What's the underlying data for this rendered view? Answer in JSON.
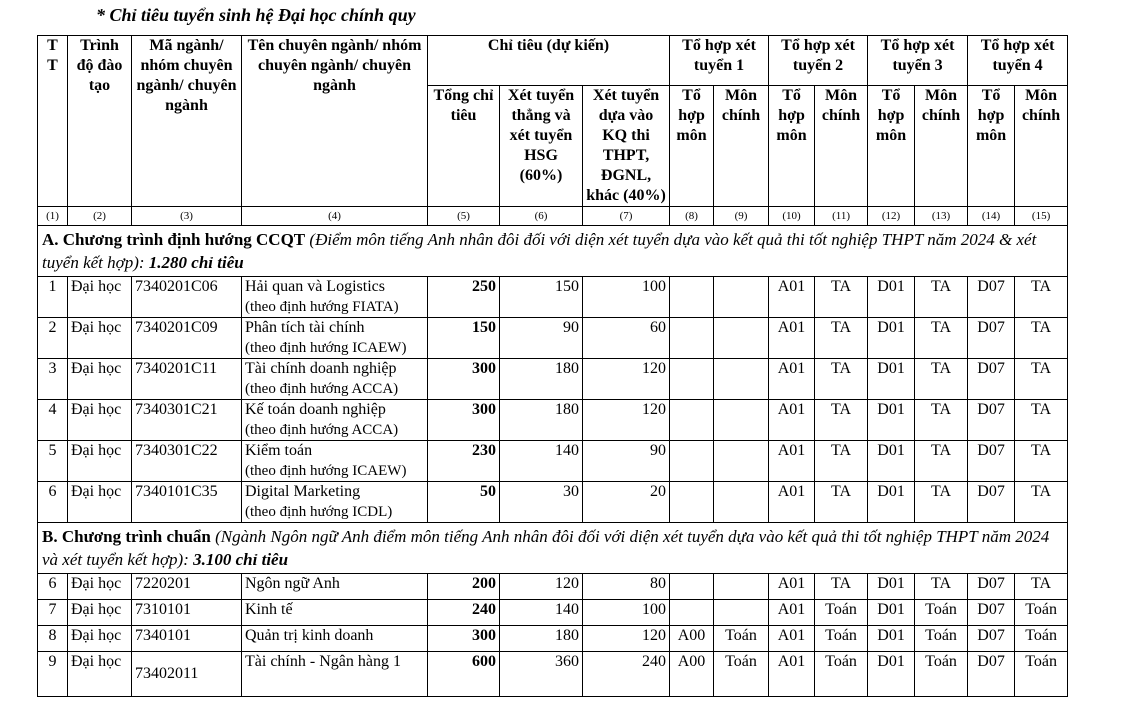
{
  "title": "* Chỉ tiêu tuyển sinh hệ Đại học chính quy",
  "headers": {
    "tt": "T T",
    "trinh_do": "Trình độ đào tạo",
    "ma_nganh": "Mã ngành/ nhóm chuyên ngành/ chuyên ngành",
    "ten": "Tên chuyên ngành/ nhóm chuyên ngành/ chuyên ngành",
    "chi_tieu": "Chỉ tiêu (dự kiến)",
    "tong": "Tổng chỉ tiêu",
    "thang": "Xét tuyển thẳng và xét tuyển HSG (60%)",
    "kq": "Xét tuyển dựa vào KQ thi THPT, ĐGNL, khác (40%)",
    "th1": "Tổ hợp xét tuyển 1",
    "th2": "Tổ hợp xét tuyển 2",
    "th3": "Tổ hợp xét tuyển 3",
    "th4": "Tổ hợp xét tuyển 4",
    "to_hop": "Tổ hợp môn",
    "mon_chinh": "Môn chính"
  },
  "col_numbers": [
    "(1)",
    "(2)",
    "(3)",
    "(4)",
    "(5)",
    "(6)",
    "(7)",
    "(8)",
    "(9)",
    "(10)",
    "(11)",
    "(12)",
    "(13)",
    "(14)",
    "(15)"
  ],
  "section_a": {
    "label": "A. Chương trình định hướng CCQT",
    "note": "(Điểm môn tiếng Anh nhân đôi đối với diện xét tuyển dựa vào kết quả thi tốt nghiệp THPT năm 2024 & xét tuyển kết hợp):",
    "total": "1.280 chỉ tiêu"
  },
  "section_b": {
    "label": "B. Chương trình chuẩn",
    "note": "(Ngành Ngôn ngữ Anh điểm môn tiếng Anh nhân đôi đối với diện xét tuyển dựa vào kết quả thi tốt nghiệp THPT năm 2024 và xét tuyển kết hợp):",
    "total": "3.100 chỉ tiêu"
  },
  "rows_a": [
    [
      "1",
      "Đại học",
      "7340201C06",
      "Hải quan và Logistics",
      "(theo định hướng FIATA)",
      "250",
      "150",
      "100",
      "",
      "",
      "A01",
      "TA",
      "D01",
      "TA",
      "D07",
      "TA"
    ],
    [
      "2",
      "Đại học",
      "7340201C09",
      "Phân tích tài chính",
      "(theo định hướng ICAEW)",
      "150",
      "90",
      "60",
      "",
      "",
      "A01",
      "TA",
      "D01",
      "TA",
      "D07",
      "TA"
    ],
    [
      "3",
      "Đại học",
      "7340201C11",
      "Tài chính doanh nghiệp",
      "(theo định hướng ACCA)",
      "300",
      "180",
      "120",
      "",
      "",
      "A01",
      "TA",
      "D01",
      "TA",
      "D07",
      "TA"
    ],
    [
      "4",
      "Đại học",
      "7340301C21",
      "Kế toán doanh nghiệp",
      "(theo định hướng ACCA)",
      "300",
      "180",
      "120",
      "",
      "",
      "A01",
      "TA",
      "D01",
      "TA",
      "D07",
      "TA"
    ],
    [
      "5",
      "Đại học",
      "7340301C22",
      "Kiểm toán",
      "(theo định hướng ICAEW)",
      "230",
      "140",
      "90",
      "",
      "",
      "A01",
      "TA",
      "D01",
      "TA",
      "D07",
      "TA"
    ],
    [
      "6",
      "Đại học",
      "7340101C35",
      "Digital Marketing",
      "(theo định hướng ICDL)",
      "50",
      "30",
      "20",
      "",
      "",
      "A01",
      "TA",
      "D01",
      "TA",
      "D07",
      "TA"
    ]
  ],
  "rows_b": [
    [
      "6",
      "Đại học",
      "7220201",
      "Ngôn ngữ Anh",
      "",
      "200",
      "120",
      "80",
      "",
      "",
      "A01",
      "TA",
      "D01",
      "TA",
      "D07",
      "TA"
    ],
    [
      "7",
      "Đại học",
      "7310101",
      "Kinh tế",
      "",
      "240",
      "140",
      "100",
      "",
      "",
      "A01",
      "Toán",
      "D01",
      "Toán",
      "D07",
      "Toán"
    ],
    [
      "8",
      "Đại học",
      "7340101",
      "Quản trị kinh doanh",
      "",
      "300",
      "180",
      "120",
      "A00",
      "Toán",
      "A01",
      "Toán",
      "D01",
      "Toán",
      "D07",
      "Toán"
    ],
    [
      "9",
      "Đại học",
      "73402011",
      "Tài chính - Ngân hàng 1",
      "",
      "600",
      "360",
      "240",
      "A00",
      "Toán",
      "A01",
      "Toán",
      "D01",
      "Toán",
      "D07",
      "Toán"
    ]
  ]
}
